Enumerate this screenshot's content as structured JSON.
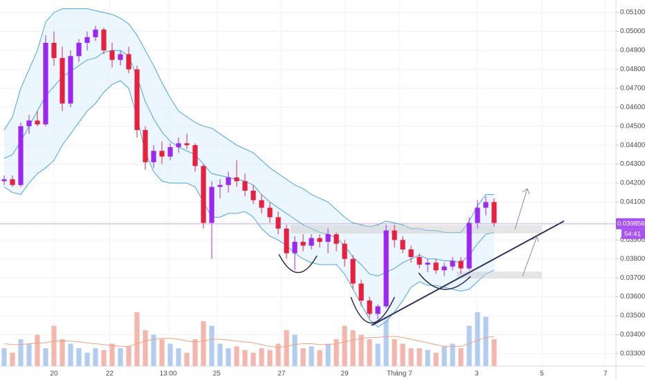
{
  "chart_data": {
    "type": "candlestick",
    "grid": true,
    "xlim": [
      -0.5,
      73.67
    ],
    "ylim": [
      0.03234,
      0.05166
    ],
    "yticks": [
      {
        "value": 0.051,
        "label": "0.051000"
      },
      {
        "value": 0.05,
        "label": "0.050000"
      },
      {
        "value": 0.049,
        "label": "0.049000"
      },
      {
        "value": 0.048,
        "label": "0.048000"
      },
      {
        "value": 0.047,
        "label": "0.047000"
      },
      {
        "value": 0.046,
        "label": "0.046000"
      },
      {
        "value": 0.045,
        "label": "0.045000"
      },
      {
        "value": 0.044,
        "label": "0.044000"
      },
      {
        "value": 0.043,
        "label": "0.043000"
      },
      {
        "value": 0.042,
        "label": "0.042000"
      },
      {
        "value": 0.041,
        "label": "0.041000"
      },
      {
        "value": 0.039,
        "label": "0.039000"
      },
      {
        "value": 0.038,
        "label": "0.038000"
      },
      {
        "value": 0.037,
        "label": "0.037000"
      },
      {
        "value": 0.036,
        "label": "0.036000"
      },
      {
        "value": 0.035,
        "label": "0.035000"
      },
      {
        "value": 0.034,
        "label": "0.034000"
      },
      {
        "value": 0.033,
        "label": "0.033000"
      }
    ],
    "xticks": [
      {
        "value": 6,
        "label": "20"
      },
      {
        "value": 12.7,
        "label": "22"
      },
      {
        "value": 19.75,
        "label": "13:00"
      },
      {
        "value": 25.6,
        "label": "25"
      },
      {
        "value": 33.4,
        "label": "27"
      },
      {
        "value": 41,
        "label": "29"
      },
      {
        "value": 47.6,
        "label": "Tháng 7"
      },
      {
        "value": 56.9,
        "label": "3"
      },
      {
        "value": 64.75,
        "label": "5"
      },
      {
        "value": 72.4,
        "label": "7"
      }
    ],
    "up_color": "#9c27f0",
    "down_color": "#e6213f",
    "candles": {
      "open": [
        0.0421,
        0.0422,
        0.0419,
        0.045,
        0.0453,
        0.0451,
        0.0494,
        0.0486,
        0.0462,
        0.0487,
        0.0494,
        0.0497,
        0.0501,
        0.049,
        0.0485,
        0.0488,
        0.048,
        0.0448,
        0.0431,
        0.0437,
        0.0434,
        0.0439,
        0.0441,
        0.044,
        0.0429,
        0.0399,
        0.0418,
        0.0419,
        0.0423,
        0.0421,
        0.0416,
        0.0411,
        0.0407,
        0.0402,
        0.0396,
        0.0383,
        0.0389,
        0.0387,
        0.0391,
        0.0389,
        0.0393,
        0.0388,
        0.038,
        0.0367,
        0.0358,
        0.0351,
        0.0355,
        0.0395,
        0.039,
        0.0385,
        0.0381,
        0.0377,
        0.0378,
        0.0374,
        0.0376,
        0.0379,
        0.0375,
        0.0399,
        0.0407,
        0.041
      ],
      "high": [
        0.0424,
        0.0424,
        0.0452,
        0.0456,
        0.0458,
        0.0498,
        0.05,
        0.0492,
        0.049,
        0.0496,
        0.05,
        0.0503,
        0.0502,
        0.0494,
        0.049,
        0.0492,
        0.0482,
        0.045,
        0.044,
        0.0442,
        0.0441,
        0.0444,
        0.0446,
        0.0441,
        0.043,
        0.0421,
        0.0422,
        0.0426,
        0.0432,
        0.0425,
        0.0419,
        0.0414,
        0.041,
        0.0405,
        0.0398,
        0.0392,
        0.0393,
        0.0393,
        0.0393,
        0.0396,
        0.0394,
        0.039,
        0.0382,
        0.0369,
        0.036,
        0.0356,
        0.0398,
        0.0398,
        0.0392,
        0.0387,
        0.0383,
        0.038,
        0.038,
        0.0378,
        0.0381,
        0.0381,
        0.0402,
        0.0411,
        0.0413,
        0.0412
      ],
      "low": [
        0.0419,
        0.0418,
        0.0418,
        0.0446,
        0.045,
        0.045,
        0.0482,
        0.0458,
        0.046,
        0.0484,
        0.049,
        0.0495,
        0.0488,
        0.0481,
        0.0482,
        0.0478,
        0.0444,
        0.0427,
        0.0428,
        0.043,
        0.0432,
        0.0436,
        0.0438,
        0.0426,
        0.0396,
        0.038,
        0.0412,
        0.0415,
        0.0418,
        0.0413,
        0.0409,
        0.0404,
        0.0399,
        0.0393,
        0.038,
        0.0374,
        0.0384,
        0.0385,
        0.0386,
        0.0383,
        0.0384,
        0.0376,
        0.0364,
        0.0355,
        0.0349,
        0.0348,
        0.0354,
        0.0386,
        0.0383,
        0.0378,
        0.0375,
        0.0373,
        0.0372,
        0.0371,
        0.0374,
        0.0372,
        0.0374,
        0.0396,
        0.0403,
        0.0397
      ],
      "close": [
        0.0422,
        0.0419,
        0.045,
        0.0453,
        0.0451,
        0.0494,
        0.0486,
        0.0462,
        0.0487,
        0.0494,
        0.0497,
        0.0501,
        0.049,
        0.0485,
        0.0488,
        0.048,
        0.0448,
        0.0431,
        0.0437,
        0.0434,
        0.0439,
        0.0441,
        0.044,
        0.0429,
        0.0399,
        0.0418,
        0.0419,
        0.0423,
        0.0421,
        0.0416,
        0.0411,
        0.0407,
        0.0402,
        0.0396,
        0.0383,
        0.0389,
        0.0387,
        0.0391,
        0.0389,
        0.0393,
        0.0388,
        0.038,
        0.0367,
        0.0358,
        0.0351,
        0.0355,
        0.0395,
        0.039,
        0.0385,
        0.0381,
        0.0377,
        0.0378,
        0.0374,
        0.0376,
        0.0379,
        0.0375,
        0.0399,
        0.0407,
        0.041,
        0.0399
      ]
    },
    "bands": {
      "color": "#4aa3df",
      "fill": "#e3f2fd",
      "upper": [
        0.0448,
        0.0455,
        0.047,
        0.048,
        0.049,
        0.0505,
        0.051,
        0.0512,
        0.0512,
        0.0512,
        0.0512,
        0.0511,
        0.051,
        0.0509,
        0.0507,
        0.0504,
        0.0498,
        0.049,
        0.0482,
        0.0473,
        0.0465,
        0.0458,
        0.0455,
        0.0452,
        0.045,
        0.0449,
        0.0446,
        0.0443,
        0.044,
        0.0438,
        0.0436,
        0.0432,
        0.0428,
        0.0425,
        0.0422,
        0.0419,
        0.0417,
        0.0414,
        0.0412,
        0.041,
        0.0406,
        0.0402,
        0.0399,
        0.0398,
        0.0397,
        0.0398,
        0.04,
        0.0399,
        0.0398,
        0.0396,
        0.0396,
        0.0395,
        0.0395,
        0.0394,
        0.0394,
        0.0394,
        0.04,
        0.0408,
        0.0414,
        0.0414
      ],
      "middle": [
        0.0433,
        0.0435,
        0.0442,
        0.045,
        0.0458,
        0.0466,
        0.0471,
        0.0476,
        0.0479,
        0.0482,
        0.0485,
        0.0486,
        0.0489,
        0.049,
        0.049,
        0.0487,
        0.0476,
        0.0463,
        0.0454,
        0.0447,
        0.0442,
        0.0439,
        0.0437,
        0.0435,
        0.043,
        0.0425,
        0.0424,
        0.0423,
        0.0422,
        0.0421,
        0.0419,
        0.0414,
        0.041,
        0.0407,
        0.0404,
        0.0401,
        0.0398,
        0.0396,
        0.0394,
        0.0393,
        0.0391,
        0.0387,
        0.0381,
        0.0377,
        0.0372,
        0.0371,
        0.0373,
        0.0375,
        0.0378,
        0.038,
        0.0382,
        0.038,
        0.038,
        0.0379,
        0.0379,
        0.0378,
        0.0382,
        0.0388,
        0.0393,
        0.0394
      ],
      "lower": [
        0.0418,
        0.0415,
        0.0414,
        0.042,
        0.0425,
        0.0428,
        0.0432,
        0.044,
        0.0446,
        0.0452,
        0.0458,
        0.0462,
        0.0468,
        0.0472,
        0.0474,
        0.047,
        0.0455,
        0.0436,
        0.0426,
        0.0421,
        0.042,
        0.042,
        0.042,
        0.0418,
        0.041,
        0.0402,
        0.0402,
        0.0404,
        0.0404,
        0.0405,
        0.0402,
        0.0396,
        0.0392,
        0.039,
        0.0387,
        0.0383,
        0.038,
        0.0378,
        0.0377,
        0.0377,
        0.0377,
        0.0372,
        0.0364,
        0.0356,
        0.0348,
        0.0344,
        0.0347,
        0.0352,
        0.0358,
        0.0365,
        0.0368,
        0.0366,
        0.0366,
        0.0365,
        0.0364,
        0.0363,
        0.0364,
        0.0368,
        0.0372,
        0.0374
      ]
    },
    "volume": {
      "ylim": [
        0,
        100
      ],
      "up_color": "#b3cdf0",
      "down_color": "#f3b7ae",
      "ma_color": "#f2a07c",
      "values": [
        20,
        15,
        30,
        25,
        35,
        20,
        45,
        30,
        25,
        20,
        15,
        20,
        18,
        25,
        20,
        22,
        60,
        40,
        35,
        30,
        25,
        20,
        15,
        30,
        50,
        45,
        25,
        20,
        22,
        18,
        15,
        20,
        18,
        25,
        40,
        35,
        20,
        22,
        18,
        25,
        30,
        45,
        40,
        35,
        30,
        25,
        55,
        30,
        25,
        20,
        20,
        18,
        15,
        22,
        25,
        20,
        45,
        60,
        55,
        30
      ],
      "ma": [
        25,
        24,
        24,
        25,
        26,
        26,
        28,
        28,
        28,
        27,
        26,
        25,
        24,
        23,
        22,
        22,
        25,
        28,
        30,
        31,
        31,
        30,
        28,
        27,
        28,
        30,
        30,
        29,
        28,
        27,
        26,
        24,
        22,
        21,
        22,
        24,
        25,
        25,
        24,
        24,
        25,
        27,
        29,
        31,
        32,
        32,
        33,
        33,
        32,
        30,
        28,
        26,
        24,
        22,
        22,
        22,
        25,
        29,
        32,
        33
      ]
    },
    "price_line": 0.039856,
    "price_line_color": "#a653f0",
    "countdown": "54:41"
  }
}
